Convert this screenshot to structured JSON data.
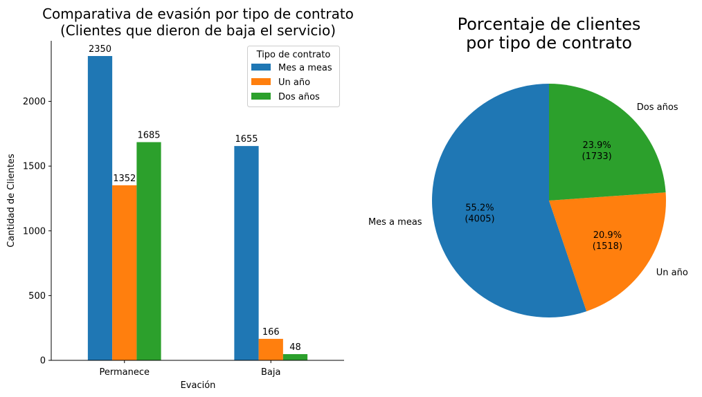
{
  "chart_data": [
    {
      "type": "bar",
      "title": "Comparativa de evasión por tipo de contrato",
      "subtitle": "(Clientes que dieron de baja el servicio)",
      "xlabel": "Evación",
      "ylabel": "Cantidad de Clientes",
      "categories": [
        "Permanece",
        "Baja"
      ],
      "series": [
        {
          "name": "Mes a meas",
          "values": [
            2350,
            1655
          ],
          "color": "#1f77b4"
        },
        {
          "name": "Un año",
          "values": [
            1352,
            166
          ],
          "color": "#ff7f0e"
        },
        {
          "name": "Dos años",
          "values": [
            1685,
            48
          ],
          "color": "#2ca02c"
        }
      ],
      "ylim": [
        0,
        2467.5
      ],
      "yticks": [
        0,
        500,
        1000,
        1500,
        2000
      ],
      "legend": {
        "title": "Tipo de contrato",
        "position": "top-right"
      },
      "grid": false
    },
    {
      "type": "pie",
      "title_lines": [
        "Porcentaje de clientes",
        "por tipo de contrato"
      ],
      "slices": [
        {
          "label": "Mes a meas",
          "value": 4005,
          "pct_label": "55.2%",
          "count_label": "(4005)",
          "color": "#1f77b4"
        },
        {
          "label": "Un año",
          "value": 1518,
          "pct_label": "20.9%",
          "count_label": "(1518)",
          "color": "#ff7f0e"
        },
        {
          "label": "Dos años",
          "value": 1733,
          "pct_label": "23.9%",
          "count_label": "(1733)",
          "color": "#2ca02c"
        }
      ],
      "start_angle": 90,
      "direction": "counterclockwise"
    }
  ]
}
